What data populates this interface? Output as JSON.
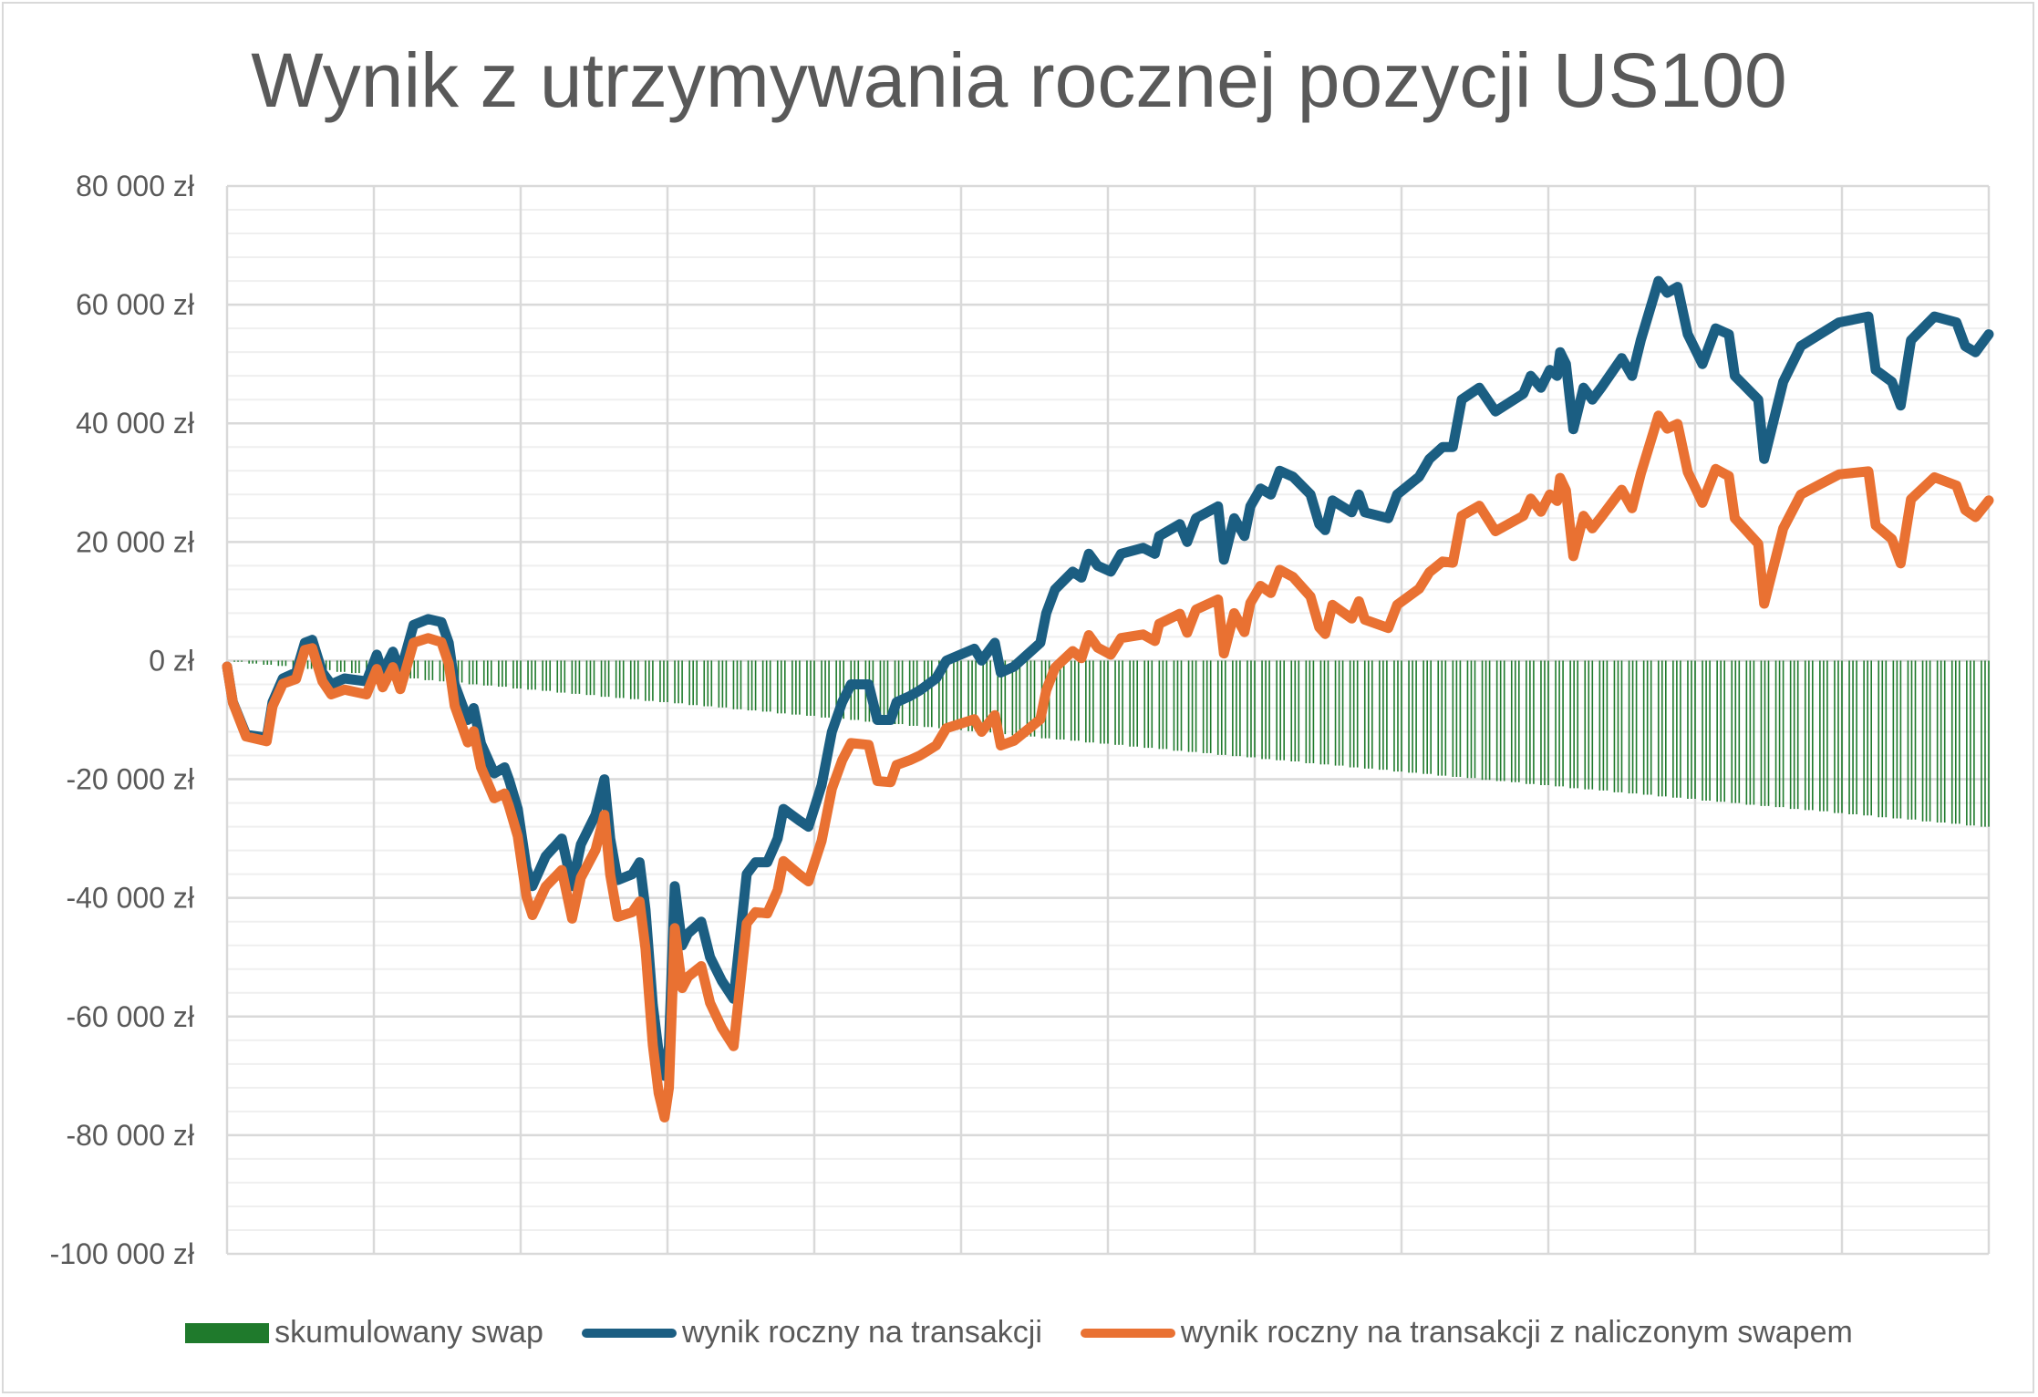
{
  "chart_data": {
    "type": "line",
    "title": "Wynik z utrzymywania rocznej pozycji US100",
    "xlabel": "",
    "ylabel": "",
    "x_unit": "months",
    "xlim": [
      0,
      12
    ],
    "ylim": [
      -100000,
      80000
    ],
    "y_ticks": [
      80000,
      60000,
      40000,
      20000,
      0,
      -20000,
      -40000,
      -60000,
      -80000,
      -100000
    ],
    "y_tick_labels": [
      "80 000 zł",
      "60 000 zł",
      "40 000 zł",
      "20 000 zł",
      "0 zł",
      "-20 000 zł",
      "-40 000 zł",
      "-60 000 zł",
      "-80 000 zł",
      "-100 000 zł"
    ],
    "grid": true,
    "legend_position": "bottom",
    "colors": {
      "swap": "#1F7A2C",
      "blue": "#1B5E82",
      "orange": "#E97132",
      "grid_major": "#d9d9d9",
      "grid_minor": "#efefef",
      "text": "#595959"
    },
    "legend": [
      "skumulowany swap",
      "wynik roczny na transakcji",
      "wynik roczny na transakcji z naliczonym swapem"
    ],
    "x": [
      0,
      0.04,
      0.13,
      0.27,
      0.31,
      0.38,
      0.47,
      0.53,
      0.58,
      0.65,
      0.71,
      0.8,
      0.95,
      1.02,
      1.06,
      1.13,
      1.18,
      1.27,
      1.37,
      1.46,
      1.51,
      1.55,
      1.64,
      1.68,
      1.73,
      1.82,
      1.89,
      1.92,
      1.98,
      2.04,
      2.08,
      2.17,
      2.28,
      2.35,
      2.41,
      2.51,
      2.57,
      2.61,
      2.66,
      2.76,
      2.81,
      2.85,
      2.9,
      2.94,
      2.98,
      3.01,
      3.05,
      3.1,
      3.14,
      3.23,
      3.29,
      3.37,
      3.45,
      3.54,
      3.6,
      3.68,
      3.75,
      3.79,
      3.9,
      3.96,
      4.05,
      4.12,
      4.19,
      4.25,
      4.37,
      4.43,
      4.52,
      4.56,
      4.65,
      4.72,
      4.83,
      4.9,
      5.09,
      5.14,
      5.23,
      5.27,
      5.36,
      5.54,
      5.58,
      5.64,
      5.76,
      5.82,
      5.87,
      5.93,
      6.02,
      6.09,
      6.24,
      6.32,
      6.35,
      6.49,
      6.54,
      6.6,
      6.75,
      6.79,
      6.86,
      6.93,
      6.97,
      7.04,
      7.11,
      7.17,
      7.26,
      7.38,
      7.44,
      7.48,
      7.53,
      7.66,
      7.71,
      7.75,
      7.91,
      7.97,
      8.12,
      8.19,
      8.28,
      8.35,
      8.41,
      8.53,
      8.64,
      8.83,
      8.88,
      8.95,
      9.01,
      9.06,
      9.08,
      9.12,
      9.17,
      9.24,
      9.3,
      9.36,
      9.5,
      9.57,
      9.63,
      9.75,
      9.81,
      9.88,
      9.95,
      10.05,
      10.14,
      10.23,
      10.27,
      10.43,
      10.47,
      10.6,
      10.72,
      10.85,
      10.98,
      11.18,
      11.23,
      11.34,
      11.4,
      11.47,
      11.63,
      11.78,
      11.84,
      11.91,
      12.0
    ],
    "series": [
      {
        "name": "wynik roczny na transakcji",
        "values": [
          -1000,
          -7000,
          -12500,
          -13000,
          -7000,
          -3000,
          -2000,
          3000,
          3500,
          -2000,
          -4000,
          -3000,
          -3500,
          1000,
          -2000,
          1500,
          -2000,
          6000,
          7000,
          6500,
          3000,
          -4000,
          -10000,
          -8000,
          -14000,
          -19000,
          -18000,
          -20000,
          -25000,
          -35000,
          -38000,
          -33000,
          -30000,
          -38000,
          -31000,
          -26000,
          -20000,
          -30000,
          -37000,
          -36000,
          -34000,
          -42000,
          -58000,
          -66000,
          -70000,
          -65000,
          -38000,
          -48000,
          -46000,
          -44000,
          -50000,
          -54000,
          -57000,
          -36000,
          -34000,
          -34000,
          -30000,
          -25000,
          -27000,
          -28000,
          -21000,
          -12000,
          -7000,
          -4000,
          -4000,
          -10000,
          -10000,
          -7000,
          -6000,
          -5000,
          -3000,
          0,
          2000,
          0,
          3000,
          -2000,
          -1000,
          3000,
          8000,
          12000,
          15000,
          14000,
          18000,
          16000,
          15000,
          18000,
          19000,
          18000,
          21000,
          23000,
          20000,
          24000,
          26000,
          17000,
          24000,
          21000,
          26000,
          29000,
          28000,
          32000,
          31000,
          28000,
          23000,
          22000,
          27000,
          25000,
          28000,
          25000,
          24000,
          28000,
          31000,
          34000,
          36000,
          36000,
          44000,
          46000,
          42000,
          45000,
          48000,
          46000,
          49000,
          48000,
          52000,
          50000,
          39000,
          46000,
          44000,
          46000,
          51000,
          48000,
          54000,
          64000,
          62000,
          63000,
          55000,
          50000,
          56000,
          55000,
          48000,
          44000,
          34000,
          47000,
          53000,
          55000,
          57000,
          58000,
          49000,
          47000,
          43000,
          54000,
          58000,
          57000,
          53000,
          52000,
          55000
        ]
      },
      {
        "name": "wynik roczny na transakcji z naliczonym swapem",
        "values": [
          -1000,
          -7100,
          -12800,
          -13600,
          -7700,
          -3900,
          -3100,
          1800,
          2100,
          -3500,
          -5700,
          -4900,
          -5700,
          -1400,
          -4500,
          -1100,
          -4800,
          3000,
          3800,
          3100,
          -500,
          -7600,
          -13800,
          -11900,
          -18000,
          -23200,
          -22400,
          -24500,
          -29600,
          -39800,
          -42900,
          -38100,
          -35300,
          -43500,
          -36600,
          -31900,
          -26000,
          -36100,
          -43200,
          -42400,
          -40600,
          -48600,
          -64800,
          -72900,
          -77000,
          -72000,
          -45100,
          -55200,
          -53300,
          -51500,
          -57700,
          -61900,
          -65000,
          -44300,
          -42400,
          -42600,
          -38700,
          -33800,
          -36100,
          -37200,
          -30400,
          -21600,
          -16800,
          -13900,
          -14200,
          -20300,
          -20500,
          -17600,
          -16800,
          -16000,
          -14300,
          -11400,
          -9900,
          -12000,
          -9200,
          -14300,
          -13500,
          -9900,
          -5000,
          -1200,
          1600,
          400,
          4300,
          2200,
          1000,
          3800,
          4400,
          3300,
          6200,
          7900,
          4700,
          8600,
          10300,
          1200,
          8000,
          4800,
          9700,
          12600,
          11400,
          15300,
          14100,
          10800,
          5600,
          4500,
          9400,
          7100,
          10000,
          6900,
          5500,
          9400,
          12100,
          14900,
          16700,
          16500,
          24400,
          26100,
          21800,
          24400,
          27300,
          25100,
          28000,
          26900,
          30800,
          28700,
          17600,
          24400,
          22300,
          24200,
          28800,
          25700,
          31500,
          41300,
          39100,
          39900,
          31800,
          26600,
          32300,
          31100,
          24000,
          19700,
          9600,
          22300,
          28000,
          29700,
          31400,
          31900,
          22800,
          20500,
          16400,
          27200,
          30900,
          29500,
          25400,
          24200,
          27000
        ]
      }
    ],
    "swap": {
      "name": "skumulowany swap",
      "type": "bar",
      "x_start": 0.1,
      "x_step": 0.1,
      "values": [
        -200,
        -500,
        -700,
        -900,
        -1200,
        -1400,
        -1600,
        -1900,
        -2100,
        -2300,
        -2600,
        -2800,
        -3000,
        -3300,
        -3500,
        -3700,
        -4000,
        -4200,
        -4400,
        -4700,
        -4900,
        -5100,
        -5400,
        -5600,
        -5800,
        -6100,
        -6300,
        -6500,
        -6800,
        -7000,
        -7200,
        -7500,
        -7700,
        -7900,
        -8200,
        -8400,
        -8600,
        -8900,
        -9100,
        -9300,
        -9600,
        -9800,
        -10000,
        -10300,
        -10500,
        -10700,
        -11000,
        -11200,
        -11400,
        -11700,
        -11900,
        -12100,
        -12400,
        -12600,
        -12800,
        -13100,
        -13300,
        -13500,
        -13800,
        -14000,
        -14200,
        -14500,
        -14700,
        -14900,
        -15200,
        -15400,
        -15600,
        -15900,
        -16100,
        -16300,
        -16600,
        -16800,
        -17000,
        -17300,
        -17500,
        -17700,
        -18000,
        -18200,
        -18400,
        -18700,
        -18900,
        -19100,
        -19400,
        -19600,
        -19800,
        -20100,
        -20300,
        -20500,
        -20800,
        -21000,
        -21200,
        -21500,
        -21700,
        -21900,
        -22200,
        -22400,
        -22600,
        -22900,
        -23100,
        -23300,
        -23600,
        -23800,
        -24000,
        -24300,
        -24500,
        -24700,
        -25000,
        -25200,
        -25400,
        -25700,
        -25900,
        -26100,
        -26400,
        -26600,
        -26800,
        -27100,
        -27300,
        -27500,
        -27800,
        -28000
      ]
    }
  }
}
